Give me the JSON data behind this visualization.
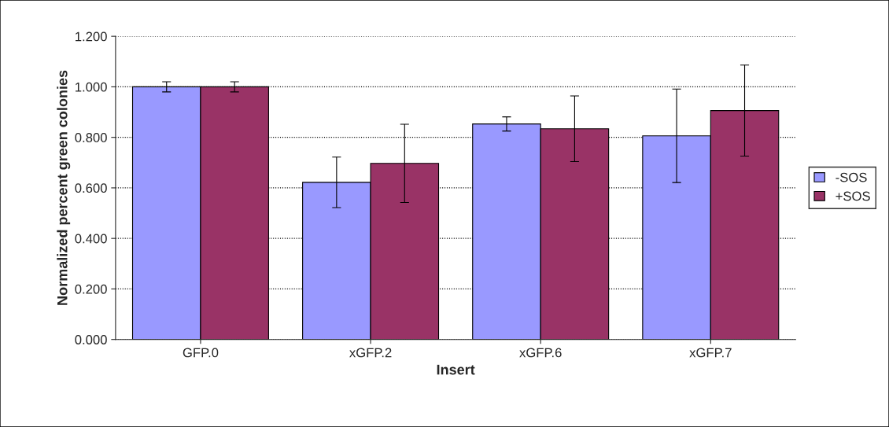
{
  "chart_data": {
    "type": "bar",
    "xlabel": "Insert",
    "ylabel": "Normalized percent green colonies",
    "categories": [
      "GFP.0",
      "xGFP.2",
      "xGFP.6",
      "xGFP.7"
    ],
    "series": [
      {
        "name": "-SOS",
        "color": "#9999ff",
        "values": [
          1.0,
          0.622,
          0.853,
          0.806
        ],
        "errors": [
          0.02,
          0.1,
          0.028,
          0.185
        ]
      },
      {
        "name": "+SOS",
        "color": "#993366",
        "values": [
          1.0,
          0.697,
          0.834,
          0.906
        ],
        "errors": [
          0.02,
          0.155,
          0.13,
          0.18
        ]
      }
    ],
    "ylim": [
      0,
      1.2
    ],
    "yticks": [
      {
        "value": 0,
        "label": "0.000"
      },
      {
        "value": 0.2,
        "label": "0.200"
      },
      {
        "value": 0.4,
        "label": "0.400"
      },
      {
        "value": 0.6,
        "label": "0.600"
      },
      {
        "value": 0.8,
        "label": "0.800"
      },
      {
        "value": 1.0,
        "label": "1.000"
      },
      {
        "value": 1.2,
        "label": "1.200"
      }
    ],
    "grid": "y",
    "legend": "right"
  }
}
